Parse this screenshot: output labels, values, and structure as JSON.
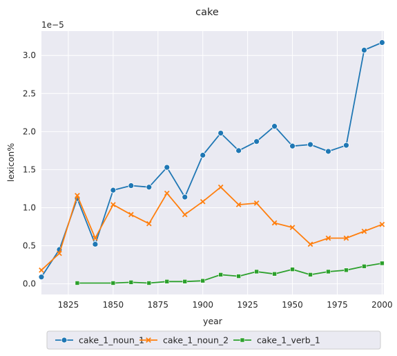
{
  "chart_data": {
    "type": "line",
    "title": "cake",
    "xlabel": "year",
    "ylabel": "lexicon%",
    "y_multiplier_label": "1e−5",
    "xlim": [
      1810,
      2001
    ],
    "ylim": [
      -0.14,
      3.32
    ],
    "x_ticks": [
      1825,
      1850,
      1875,
      1900,
      1925,
      1950,
      1975,
      2000
    ],
    "y_ticks": [
      0.0,
      0.5,
      1.0,
      1.5,
      2.0,
      2.5,
      3.0
    ],
    "y_tick_labels": [
      "0.0",
      "0.5",
      "1.0",
      "1.5",
      "2.0",
      "2.5",
      "3.0"
    ],
    "grid": true,
    "legend_position": "bottom",
    "series": [
      {
        "name": "cake_1_noun_1",
        "color": "#1f77b4",
        "marker": "circle",
        "x": [
          1810,
          1820,
          1830,
          1840,
          1850,
          1860,
          1870,
          1880,
          1890,
          1900,
          1910,
          1920,
          1930,
          1940,
          1950,
          1960,
          1970,
          1980,
          1990,
          2000
        ],
        "y": [
          0.09,
          0.45,
          1.12,
          0.52,
          1.23,
          1.29,
          1.27,
          1.53,
          1.14,
          1.69,
          1.98,
          1.75,
          1.87,
          2.07,
          1.81,
          1.83,
          1.74,
          1.82,
          3.07,
          3.17
        ]
      },
      {
        "name": "cake_1_noun_2",
        "color": "#ff7f0e",
        "marker": "x",
        "x": [
          1810,
          1820,
          1830,
          1840,
          1850,
          1860,
          1870,
          1880,
          1890,
          1900,
          1910,
          1920,
          1930,
          1940,
          1950,
          1960,
          1970,
          1980,
          1990,
          2000
        ],
        "y": [
          0.18,
          0.4,
          1.16,
          0.6,
          1.04,
          0.91,
          0.79,
          1.19,
          0.91,
          1.08,
          1.27,
          1.04,
          1.06,
          0.8,
          0.74,
          0.52,
          0.6,
          0.6,
          0.69,
          0.78
        ]
      },
      {
        "name": "cake_1_verb_1",
        "color": "#2ca02c",
        "marker": "square",
        "x": [
          1830,
          1850,
          1860,
          1870,
          1880,
          1890,
          1900,
          1910,
          1920,
          1930,
          1940,
          1950,
          1960,
          1970,
          1980,
          1990,
          2000
        ],
        "y": [
          0.01,
          0.01,
          0.02,
          0.01,
          0.03,
          0.03,
          0.04,
          0.12,
          0.1,
          0.16,
          0.13,
          0.19,
          0.12,
          0.16,
          0.18,
          0.23,
          0.27
        ]
      }
    ]
  }
}
